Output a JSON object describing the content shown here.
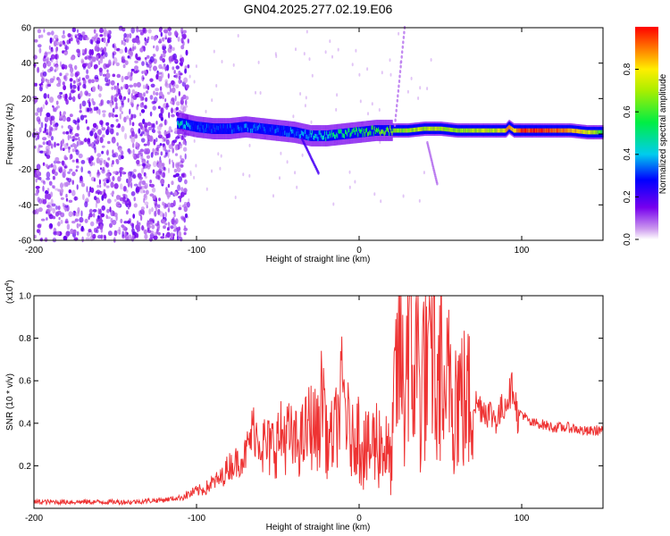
{
  "title": "GN04.2025.277.02.19.E06",
  "chart_data": [
    {
      "type": "heatmap",
      "xlabel": "Height of straight line (km)",
      "ylabel": "Frequency (Hz)",
      "xlim": [
        -200,
        150
      ],
      "ylim": [
        -60,
        60
      ],
      "xticks": [
        -200,
        -100,
        0,
        100
      ],
      "yticks": [
        -60,
        -40,
        -20,
        0,
        20,
        40,
        60
      ],
      "colorbar": {
        "label": "Normalized spectral amplitude",
        "ticks": [
          "0.0",
          "0.2",
          "0.4",
          "0.6",
          "0.8"
        ],
        "range": [
          0,
          1
        ]
      },
      "trace": {
        "x": [
          -110,
          -100,
          -90,
          -80,
          -70,
          -60,
          -50,
          -40,
          -30,
          -20,
          -10,
          0,
          10,
          20,
          30,
          40,
          50,
          60,
          70,
          80,
          90,
          92,
          95,
          100,
          110,
          120,
          130,
          140,
          150
        ],
        "freq": [
          6,
          4,
          3,
          3,
          4,
          3,
          2,
          1,
          -1,
          -1,
          0,
          1,
          2,
          2,
          2,
          3,
          3,
          2,
          2,
          2,
          2,
          4,
          2,
          2,
          2,
          2,
          2,
          1,
          1
        ],
        "amplitude": [
          0.45,
          0.3,
          0.28,
          0.3,
          0.33,
          0.32,
          0.3,
          0.34,
          0.4,
          0.45,
          0.52,
          0.55,
          0.6,
          0.65,
          0.7,
          0.7,
          0.7,
          0.68,
          0.7,
          0.72,
          0.8,
          0.9,
          0.78,
          0.95,
          0.97,
          0.92,
          0.85,
          0.75,
          0.6
        ]
      }
    },
    {
      "type": "line",
      "xlabel": "Height of straight line (km)",
      "ylabel": "SNR (10 * v/v)",
      "yscale_label": "(x10",
      "yscale_exp": "4",
      "yscale_close": ")",
      "xlim": [
        -200,
        150
      ],
      "ylim": [
        0,
        1.0
      ],
      "xticks": [
        -200,
        -100,
        0,
        100
      ],
      "yticks": [
        "0.2",
        "0.4",
        "0.6",
        "0.8",
        "1.0"
      ],
      "series_color": "#ee3333",
      "series": [
        {
          "name": "SNR",
          "x": [
            -200,
            -180,
            -160,
            -140,
            -120,
            -110,
            -100,
            -95,
            -90,
            -85,
            -80,
            -75,
            -70,
            -65,
            -60,
            -55,
            -50,
            -45,
            -40,
            -35,
            -30,
            -25,
            -22,
            -20,
            -15,
            -10,
            -5,
            0,
            5,
            10,
            15,
            20,
            22,
            25,
            28,
            30,
            33,
            35,
            38,
            40,
            43,
            45,
            48,
            50,
            53,
            55,
            58,
            60,
            65,
            70,
            75,
            80,
            85,
            90,
            95,
            98,
            100,
            105,
            110,
            120,
            130,
            140,
            150
          ],
          "y": [
            0.03,
            0.03,
            0.03,
            0.03,
            0.04,
            0.05,
            0.08,
            0.09,
            0.12,
            0.14,
            0.2,
            0.22,
            0.25,
            0.38,
            0.3,
            0.28,
            0.32,
            0.35,
            0.3,
            0.32,
            0.4,
            0.35,
            0.6,
            0.3,
            0.35,
            0.55,
            0.3,
            0.38,
            0.25,
            0.32,
            0.3,
            0.2,
            0.55,
            0.8,
            0.45,
            1.0,
            0.5,
            0.9,
            0.45,
            0.75,
            0.55,
            0.92,
            0.4,
            0.82,
            0.3,
            0.75,
            0.55,
            0.55,
            0.5,
            0.5,
            0.48,
            0.45,
            0.42,
            0.5,
            0.58,
            0.4,
            0.45,
            0.4,
            0.4,
            0.38,
            0.38,
            0.36,
            0.37
          ]
        }
      ]
    }
  ]
}
